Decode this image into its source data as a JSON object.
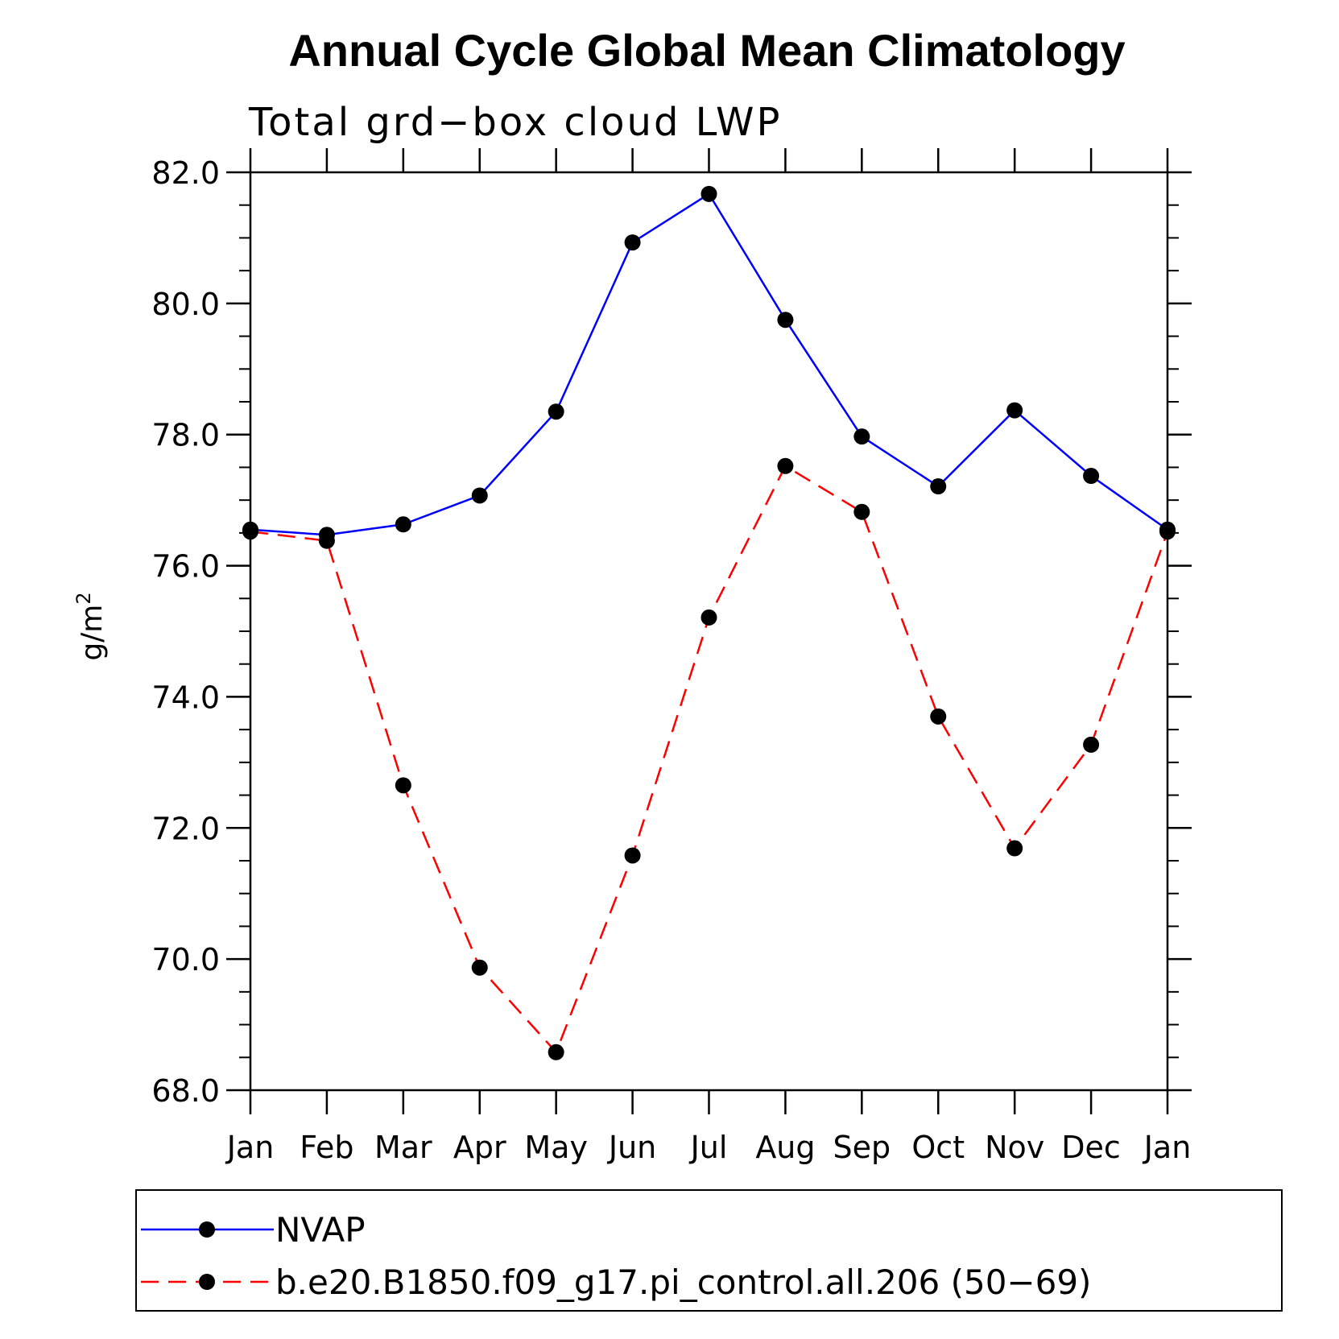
{
  "chart_data": {
    "type": "line",
    "title": "Annual Cycle Global Mean Climatology",
    "subtitle": "Total grd−box cloud LWP",
    "ylabel": "g/m",
    "ylabel_superscript": "2",
    "xlabel": "",
    "categories": [
      "Jan",
      "Feb",
      "Mar",
      "Apr",
      "May",
      "Jun",
      "Jul",
      "Aug",
      "Sep",
      "Oct",
      "Nov",
      "Dec",
      "Jan"
    ],
    "ylim": [
      68.0,
      82.0
    ],
    "yticks": [
      68.0,
      70.0,
      72.0,
      74.0,
      76.0,
      78.0,
      80.0,
      82.0
    ],
    "ytick_labels": [
      "68.0",
      "70.0",
      "72.0",
      "74.0",
      "76.0",
      "78.0",
      "80.0",
      "82.0"
    ],
    "y_minor_step": 0.5,
    "grid": false,
    "legend_position": "bottom",
    "series": [
      {
        "name": "NVAP",
        "color": "#0000ff",
        "dash": "solid",
        "values": [
          76.55,
          76.47,
          76.63,
          77.07,
          78.35,
          80.93,
          81.67,
          79.75,
          77.97,
          77.21,
          78.37,
          77.37,
          76.55
        ]
      },
      {
        "name": "b.e20.B1850.f09_g17.pi_control.all.206 (50−69)",
        "color": "#ff0000",
        "dash": "dashed",
        "values": [
          76.52,
          76.38,
          72.65,
          69.87,
          68.58,
          71.58,
          75.21,
          77.52,
          76.82,
          73.7,
          71.69,
          73.27,
          76.52
        ]
      }
    ],
    "marker_color": "#000000"
  }
}
